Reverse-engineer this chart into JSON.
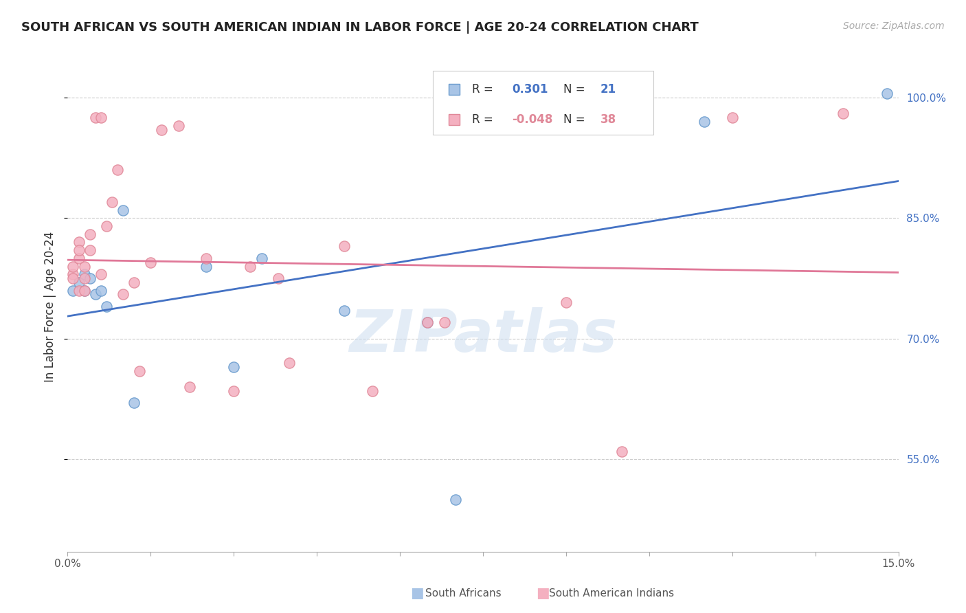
{
  "title": "SOUTH AFRICAN VS SOUTH AMERICAN INDIAN IN LABOR FORCE | AGE 20-24 CORRELATION CHART",
  "source": "Source: ZipAtlas.com",
  "ylabel": "In Labor Force | Age 20-24",
  "xmin": 0.0,
  "xmax": 0.15,
  "ymin": 0.435,
  "ymax": 1.045,
  "yticks": [
    0.55,
    0.7,
    0.85,
    1.0
  ],
  "xtick_positions": [
    0.0,
    0.015,
    0.03,
    0.045,
    0.06,
    0.075,
    0.09,
    0.105,
    0.12,
    0.135,
    0.15
  ],
  "watermark": "ZIPatlas",
  "blue_x": [
    0.001,
    0.002,
    0.003,
    0.003,
    0.004,
    0.005,
    0.006,
    0.007,
    0.01,
    0.012,
    0.025,
    0.03,
    0.035,
    0.05,
    0.065,
    0.07,
    0.115,
    0.148
  ],
  "blue_y": [
    0.76,
    0.77,
    0.78,
    0.76,
    0.775,
    0.755,
    0.76,
    0.74,
    0.86,
    0.62,
    0.79,
    0.665,
    0.8,
    0.735,
    0.72,
    0.5,
    0.97,
    1.005
  ],
  "pink_x": [
    0.001,
    0.001,
    0.001,
    0.002,
    0.002,
    0.002,
    0.003,
    0.003,
    0.004,
    0.004,
    0.005,
    0.006,
    0.006,
    0.007,
    0.008,
    0.009,
    0.01,
    0.012,
    0.013,
    0.015,
    0.017,
    0.02,
    0.022,
    0.025,
    0.03,
    0.033,
    0.038,
    0.04,
    0.05,
    0.055,
    0.065,
    0.068,
    0.09,
    0.1,
    0.12,
    0.14,
    0.002,
    0.003
  ],
  "pink_y": [
    0.78,
    0.79,
    0.775,
    0.76,
    0.8,
    0.82,
    0.76,
    0.79,
    0.81,
    0.83,
    0.975,
    0.975,
    0.78,
    0.84,
    0.87,
    0.91,
    0.755,
    0.77,
    0.66,
    0.795,
    0.96,
    0.965,
    0.64,
    0.8,
    0.635,
    0.79,
    0.775,
    0.67,
    0.815,
    0.635,
    0.72,
    0.72,
    0.745,
    0.56,
    0.975,
    0.98,
    0.81,
    0.775
  ],
  "blue_dot_color": "#a8c4e6",
  "blue_dot_edge": "#6699cc",
  "pink_dot_color": "#f4b0c0",
  "pink_dot_edge": "#e08898",
  "blue_line_color": "#4472c4",
  "pink_line_color": "#e07898",
  "grid_color": "#cccccc",
  "background_color": "#ffffff",
  "legend_label_blue": "South Africans",
  "legend_label_pink": "South American Indians"
}
